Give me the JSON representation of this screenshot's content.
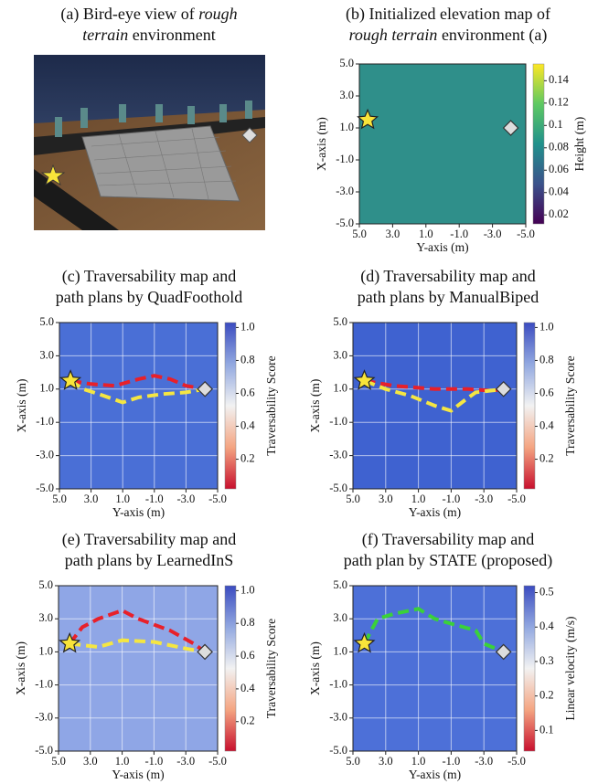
{
  "image_panel": {
    "title_lines": [
      [
        {
          "text": "(a) Bird-eye view of "
        },
        {
          "text": "rough",
          "italic": true
        }
      ],
      [
        {
          "text": "terrain",
          "italic": true
        },
        {
          "text": " environment"
        }
      ]
    ]
  },
  "chart_data": [
    {
      "type": "heatmap",
      "title_lines": [
        [
          {
            "text": "(b) Initialized elevation map of"
          }
        ],
        [
          {
            "text": "rough terrain",
            "italic": true
          },
          {
            "text": " environment (a)"
          }
        ]
      ],
      "x_label": "Y-axis (m)",
      "y_label": "X-axis (m)",
      "xlim": [
        5,
        -5
      ],
      "ylim": [
        -5,
        5
      ],
      "xticks": [
        {
          "value": 5,
          "label": "5.0"
        },
        {
          "value": 3,
          "label": "3.0"
        },
        {
          "value": 1,
          "label": "1.0"
        },
        {
          "value": -1,
          "label": "-1.0"
        },
        {
          "value": -3,
          "label": "-3.0"
        },
        {
          "value": -5,
          "label": "-5.0"
        }
      ],
      "yticks": [
        {
          "value": -5,
          "label": "-5.0"
        },
        {
          "value": -3,
          "label": "-3.0"
        },
        {
          "value": -1,
          "label": "-1.0"
        },
        {
          "value": 1,
          "label": "1.0"
        },
        {
          "value": 3,
          "label": "3.0"
        },
        {
          "value": 5,
          "label": "5.0"
        }
      ],
      "grid": false,
      "map_color": "#2f8f8a",
      "colorbar": {
        "label": "Height (m)",
        "lim": [
          0.012,
          0.155
        ],
        "ticks": [
          0.02,
          0.04,
          0.06,
          0.08,
          0.1,
          0.12,
          0.14
        ],
        "colors": [
          "#440154",
          "#3b528b",
          "#21918c",
          "#5ec962",
          "#fde725"
        ]
      },
      "start": {
        "x": 4.5,
        "y": 1.5
      },
      "goal": {
        "x": -4.1,
        "y": 1.0
      },
      "series": []
    },
    {
      "type": "heatmap",
      "title_lines": [
        [
          {
            "text": "(c) Traversability map and"
          }
        ],
        [
          {
            "text": "path plans by QuadFoothold"
          }
        ]
      ],
      "x_label": "Y-axis (m)",
      "y_label": "X-axis (m)",
      "xlim": [
        5,
        -5
      ],
      "ylim": [
        -5,
        5
      ],
      "xticks": [
        {
          "value": 5,
          "label": "5.0"
        },
        {
          "value": 3,
          "label": "3.0"
        },
        {
          "value": 1,
          "label": "1.0"
        },
        {
          "value": -1,
          "label": "-1.0"
        },
        {
          "value": -3,
          "label": "-3.0"
        },
        {
          "value": -5,
          "label": "-5.0"
        }
      ],
      "yticks": [
        {
          "value": -5,
          "label": "-5.0"
        },
        {
          "value": -3,
          "label": "-3.0"
        },
        {
          "value": -1,
          "label": "-1.0"
        },
        {
          "value": 1,
          "label": "1.0"
        },
        {
          "value": 3,
          "label": "3.0"
        },
        {
          "value": 5,
          "label": "5.0"
        }
      ],
      "grid": true,
      "map_color": "#4a6fd6",
      "colorbar": {
        "label": "Traversability Score",
        "lim": [
          0.02,
          1.03
        ],
        "ticks": [
          0.2,
          0.4,
          0.6,
          0.8,
          {
            "value": 1,
            "label": "1.0"
          }
        ],
        "colors": [
          "#c8102e",
          "#f4a582",
          "#f2f2f2",
          "#92a8e0",
          "#3b4cc0"
        ]
      },
      "start": {
        "x": 4.3,
        "y": 1.5
      },
      "goal": {
        "x": -4.2,
        "y": 1.0
      },
      "series": [
        {
          "color": "#e8202a",
          "x": [
            4.3,
            3,
            1.5,
            0,
            -1,
            -2,
            -3,
            -4.2
          ],
          "values": [
            1.5,
            1.3,
            1.2,
            1.6,
            1.8,
            1.6,
            1.2,
            1.0
          ]
        },
        {
          "color": "#f5e642",
          "x": [
            4.3,
            3.5,
            2.5,
            1,
            0,
            -1.5,
            -3,
            -4.2
          ],
          "values": [
            1.5,
            1.0,
            0.7,
            0.2,
            0.5,
            0.7,
            0.8,
            1.0
          ]
        }
      ]
    },
    {
      "type": "heatmap",
      "title_lines": [
        [
          {
            "text": "(d) Traversability map and"
          }
        ],
        [
          {
            "text": "path plans by ManualBiped"
          }
        ]
      ],
      "x_label": "Y-axis (m)",
      "y_label": "X-axis (m)",
      "xlim": [
        5,
        -5
      ],
      "ylim": [
        -5,
        5
      ],
      "xticks": [
        {
          "value": 5,
          "label": "5.0"
        },
        {
          "value": 3,
          "label": "3.0"
        },
        {
          "value": 1,
          "label": "1.0"
        },
        {
          "value": -1,
          "label": "-1.0"
        },
        {
          "value": -3,
          "label": "-3.0"
        },
        {
          "value": -5,
          "label": "-5.0"
        }
      ],
      "yticks": [
        {
          "value": -5,
          "label": "-5.0"
        },
        {
          "value": -3,
          "label": "-3.0"
        },
        {
          "value": -1,
          "label": "-1.0"
        },
        {
          "value": 1,
          "label": "1.0"
        },
        {
          "value": 3,
          "label": "3.0"
        },
        {
          "value": 5,
          "label": "5.0"
        }
      ],
      "grid": true,
      "map_color": "#3f62d0",
      "colorbar": {
        "label": "Traversability Score",
        "lim": [
          0.02,
          1.03
        ],
        "ticks": [
          0.2,
          0.4,
          0.6,
          0.8,
          {
            "value": 1,
            "label": "1.0"
          }
        ],
        "colors": [
          "#c8102e",
          "#f4a582",
          "#f2f2f2",
          "#92a8e0",
          "#3b4cc0"
        ]
      },
      "start": {
        "x": 4.3,
        "y": 1.5
      },
      "goal": {
        "x": -4.2,
        "y": 1.0
      },
      "series": [
        {
          "color": "#e8202a",
          "x": [
            4.3,
            2.5,
            0,
            -2,
            -3.5,
            -4.2
          ],
          "values": [
            1.5,
            1.2,
            1.0,
            1.0,
            0.9,
            1.0
          ]
        },
        {
          "color": "#f5e642",
          "x": [
            4.3,
            3,
            1.5,
            0,
            -1,
            -1.8,
            -2.5,
            -4.2
          ],
          "values": [
            1.5,
            1.0,
            0.6,
            0.0,
            -0.3,
            0.3,
            0.8,
            1.0
          ]
        }
      ]
    },
    {
      "type": "heatmap",
      "title_lines": [
        [
          {
            "text": "(e) Traversability map and"
          }
        ],
        [
          {
            "text": "path plans by LearnedInS"
          }
        ]
      ],
      "x_label": "Y-axis (m)",
      "y_label": "X-axis (m)",
      "xlim": [
        5,
        -5
      ],
      "ylim": [
        -5,
        5
      ],
      "xticks": [
        {
          "value": 5,
          "label": "5.0"
        },
        {
          "value": 3,
          "label": "3.0"
        },
        {
          "value": 1,
          "label": "1.0"
        },
        {
          "value": -1,
          "label": "-1.0"
        },
        {
          "value": -3,
          "label": "-3.0"
        },
        {
          "value": -5,
          "label": "-5.0"
        }
      ],
      "yticks": [
        {
          "value": -5,
          "label": "-5.0"
        },
        {
          "value": -3,
          "label": "-3.0"
        },
        {
          "value": -1,
          "label": "-1.0"
        },
        {
          "value": 1,
          "label": "1.0"
        },
        {
          "value": 3,
          "label": "3.0"
        },
        {
          "value": 5,
          "label": "5.0"
        }
      ],
      "grid": true,
      "map_color": "#8fa6e6",
      "colorbar": {
        "label": "Traversability Score",
        "lim": [
          0.02,
          1.03
        ],
        "ticks": [
          0.2,
          0.4,
          0.6,
          0.8,
          {
            "value": 1,
            "label": "1.0"
          }
        ],
        "colors": [
          "#c8102e",
          "#f4a582",
          "#f2f2f2",
          "#92a8e0",
          "#3b4cc0"
        ]
      },
      "start": {
        "x": 4.3,
        "y": 1.5
      },
      "goal": {
        "x": -4.2,
        "y": 1.0
      },
      "series": [
        {
          "color": "#e8202a",
          "x": [
            4.3,
            3.5,
            2.5,
            1,
            0,
            -2,
            -3.5,
            -4.2
          ],
          "values": [
            1.5,
            2.5,
            3.0,
            3.5,
            3.0,
            2.3,
            1.5,
            1.0
          ]
        },
        {
          "color": "#f5e642",
          "x": [
            4.3,
            2.5,
            1,
            -1,
            -3,
            -4.2
          ],
          "values": [
            1.5,
            1.3,
            1.7,
            1.6,
            1.2,
            1.0
          ]
        }
      ]
    },
    {
      "type": "heatmap",
      "title_lines": [
        [
          {
            "text": "(f) Traversability map and"
          }
        ],
        [
          {
            "text": "path plan by STATE (proposed)"
          }
        ]
      ],
      "x_label": "Y-axis (m)",
      "y_label": "X-axis (m)",
      "xlim": [
        5,
        -5
      ],
      "ylim": [
        -5,
        5
      ],
      "xticks": [
        {
          "value": 5,
          "label": "5.0"
        },
        {
          "value": 3,
          "label": "3.0"
        },
        {
          "value": 1,
          "label": "1.0"
        },
        {
          "value": -1,
          "label": "-1.0"
        },
        {
          "value": -3,
          "label": "-3.0"
        },
        {
          "value": -5,
          "label": "-5.0"
        }
      ],
      "yticks": [
        {
          "value": -5,
          "label": "-5.0"
        },
        {
          "value": -3,
          "label": "-3.0"
        },
        {
          "value": -1,
          "label": "-1.0"
        },
        {
          "value": 1,
          "label": "1.0"
        },
        {
          "value": 3,
          "label": "3.0"
        },
        {
          "value": 5,
          "label": "5.0"
        }
      ],
      "grid": true,
      "map_color": "#4d70d8",
      "colorbar": {
        "label": "Linear velocity (m/s)",
        "lim": [
          0.04,
          0.52
        ],
        "ticks": [
          0.1,
          0.2,
          0.3,
          0.4,
          0.5
        ],
        "colors": [
          "#c8102e",
          "#f4a582",
          "#f2f2f2",
          "#92a8e0",
          "#3b4cc0"
        ]
      },
      "start": {
        "x": 4.3,
        "y": 1.5
      },
      "goal": {
        "x": -4.2,
        "y": 1.0
      },
      "series": [
        {
          "color": "#3ad13a",
          "x": [
            4.3,
            3.5,
            2.5,
            1,
            0,
            -1,
            -2.5,
            -3,
            -4.2
          ],
          "values": [
            1.5,
            3.0,
            3.3,
            3.6,
            3.0,
            2.7,
            2.3,
            1.5,
            1.0
          ]
        }
      ]
    }
  ]
}
